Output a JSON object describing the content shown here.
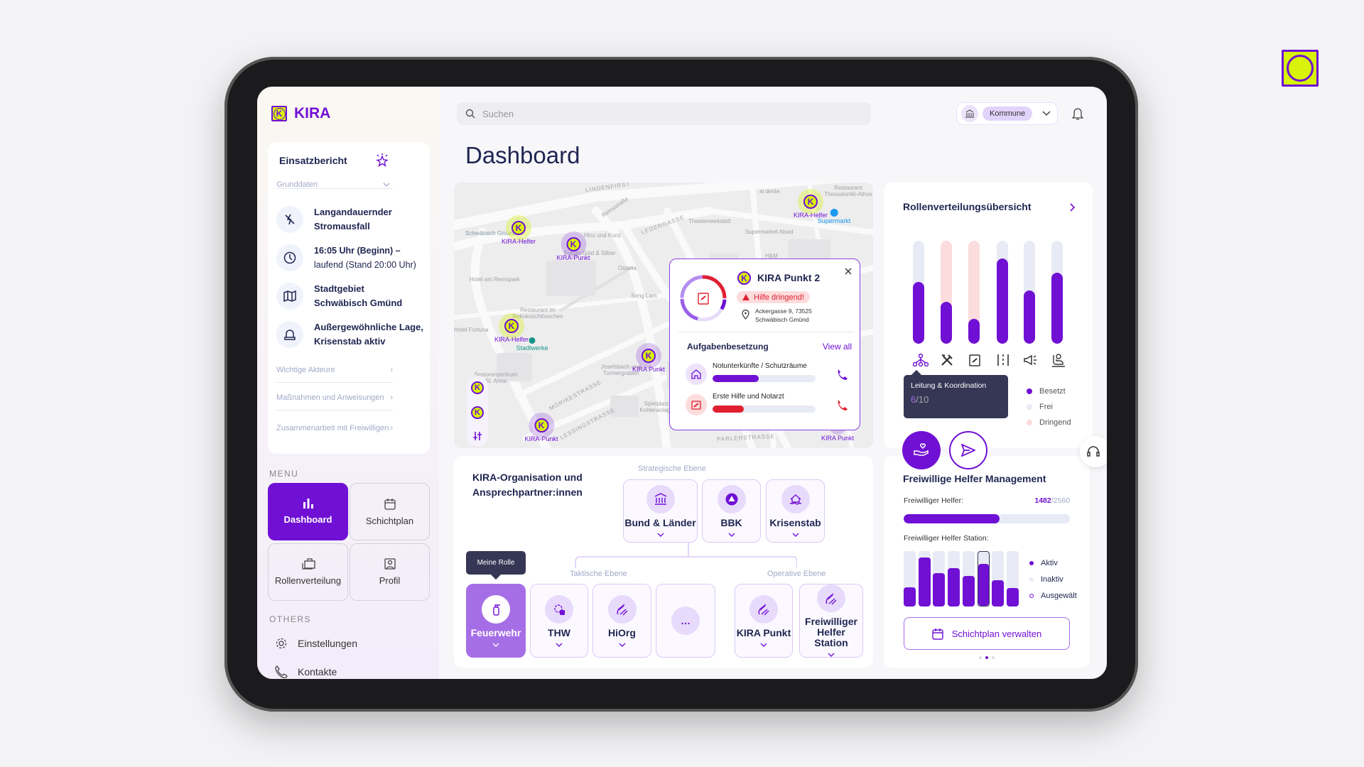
{
  "app": {
    "name": "KIRA",
    "logo_letter": "K"
  },
  "colors": {
    "accent": "#7010d4",
    "brand_yellow": "#d8f20b",
    "urgent": "#e02030",
    "free": "#e8ebf5",
    "urgent_light": "#fcdcdc",
    "navy": "#1f2551"
  },
  "header": {
    "search_placeholder": "Suchen",
    "role_select": "Kommune",
    "icons": [
      "search-icon",
      "institution-icon",
      "chevron-down-icon",
      "bell-icon"
    ]
  },
  "page_title": "Dashboard",
  "einsatzbericht": {
    "title": "Einsatzbericht",
    "section": "Grunddaten",
    "items": [
      {
        "icon": "power-off-icon",
        "line1": "Langandauernder",
        "line2": "Stromausfall"
      },
      {
        "icon": "clock-icon",
        "line1": "16:05 Uhr (Beginn) –",
        "line2": "laufend (Stand 20:00 Uhr)"
      },
      {
        "icon": "map-icon",
        "line1": "Stadtgebiet",
        "line2": "Schwäbisch Gmünd"
      },
      {
        "icon": "siren-icon",
        "line1": "Außergewöhnliche Lage,",
        "line2": "Krisenstab aktiv"
      }
    ],
    "links": [
      "Wichtige Akteure",
      "Maßnahmen und Anweisungen",
      "Zusammenarbeit mit Freiwilligen"
    ]
  },
  "menu": {
    "label": "MENU",
    "items": [
      {
        "label": "Dashboard",
        "icon": "bar-chart-icon",
        "active": true
      },
      {
        "label": "Schichtplan",
        "icon": "calendar-icon"
      },
      {
        "label": "Rollenverteilung",
        "icon": "briefcase-icon"
      },
      {
        "label": "Profil",
        "icon": "profile-icon"
      }
    ],
    "others_label": "OTHERS",
    "others": [
      {
        "label": "Einstellungen",
        "icon": "gear-icon"
      },
      {
        "label": "Kontakte",
        "icon": "phone-icon"
      }
    ]
  },
  "map": {
    "streets": [
      "LINDENFIRST",
      "LEDERGASSE",
      "MÖRIKESTRASSE",
      "LESSINGSTRASSE",
      "PARLERSTRASSE",
      "Remsstraße"
    ],
    "pois": [
      "Schwäbisch Gmünd",
      "Hinz und Kunz",
      "Forum Gold & Silber",
      "Osteria",
      "Hotel am Remspark",
      "Song Lam",
      "Restaurant im Rokokoschlösschen",
      "Hotel Fortuna",
      "Seniorenzentrum St. Anna",
      "Josefsbach und Turmergraben",
      "Spielplatz Kohleranlage",
      "Theaterwerkstatt",
      "Supermarket Alsed",
      "H&M",
      "Restaurant Thessaloniki-Athos",
      "al dente"
    ],
    "markers": [
      {
        "label": "KIRA-Helfer",
        "type": "helfer"
      },
      {
        "label": "KIRA-Punkt",
        "type": "punkt"
      },
      {
        "label": "KIRA-Helfer",
        "type": "helfer"
      },
      {
        "label": "KIRA Punkt",
        "type": "punkt"
      },
      {
        "label": "KIRA-Punkt",
        "type": "punkt"
      },
      {
        "label": "KIRA-Helfer",
        "type": "helfer"
      },
      {
        "label": "KIRA Punkt",
        "type": "punkt"
      }
    ],
    "special": [
      {
        "label": "Supermarkt"
      },
      {
        "label": "Stadtwerke"
      }
    ],
    "popup": {
      "title": "KIRA Punkt 2",
      "badge": "Hilfe dringend!",
      "address1": "Ackergasse 9, 73525",
      "address2": "Schwäbisch Gmünd",
      "section": "Aufgabenbesetzung",
      "view_all": "View all",
      "tasks": [
        {
          "label": "Notunterkünfte / Schutzräume",
          "progress": 0.45,
          "color": "#7010d4",
          "icon": "house-icon"
        },
        {
          "label": "Erste Hilfe und Notarzt",
          "progress": 0.3,
          "color": "#e02030",
          "icon": "first-aid-icon"
        }
      ]
    }
  },
  "org": {
    "title1": "KIRA-Organisation und",
    "title2": "Ansprechpartner:innen",
    "levels": {
      "strategic": "Strategische Ebene",
      "tactical": "Taktische Ebene",
      "operative": "Operative Ebene"
    },
    "tooltip": "Meine Rolle",
    "strategic": [
      {
        "label": "Bund & Länder"
      },
      {
        "label": "BBK"
      },
      {
        "label": "Krisenstab"
      }
    ],
    "tactical": [
      {
        "label": "Feuerwehr",
        "active": true
      },
      {
        "label": "THW"
      },
      {
        "label": "HiOrg"
      },
      {
        "label": "…"
      }
    ],
    "operative": [
      {
        "label": "KIRA Punkt"
      },
      {
        "label": "Freiwilliger Helfer Station"
      }
    ]
  },
  "roles": {
    "title": "Rollenverteilungsübersicht",
    "bars": [
      {
        "role": "Leitung & Koordination",
        "icon": "hierarchy-icon",
        "filled": 0.6,
        "status": "free"
      },
      {
        "icon": "tools-icon",
        "filled": 0.41,
        "status": "urgent"
      },
      {
        "icon": "first-aid-icon",
        "filled": 0.24,
        "status": "urgent"
      },
      {
        "icon": "logistics-icon",
        "filled": 0.83,
        "status": "free"
      },
      {
        "icon": "megaphone-icon",
        "filled": 0.52,
        "status": "free"
      },
      {
        "icon": "care-seat-icon",
        "filled": 0.69,
        "status": "free"
      }
    ],
    "tooltip": {
      "title": "Leitung & Koordination",
      "value": "6",
      "total": "/10"
    },
    "legend": [
      "Besetzt",
      "Frei",
      "Dringend"
    ]
  },
  "helpers": {
    "title": "Freiwillige Helfer Management",
    "count_label": "Freiwilliger Helfer:",
    "count": "1482",
    "total": "/2560",
    "progress": 0.579,
    "station_label": "Freiwilliger Helfer Station:",
    "stations": [
      0.35,
      0.88,
      0.6,
      0.69,
      0.55,
      0.78,
      0.48,
      0.33
    ],
    "selected_station": 5,
    "legend": [
      "Aktiv",
      "Inaktiv",
      "Ausgewält"
    ],
    "button": "Schichtplan verwalten",
    "pager": {
      "pages": 3,
      "current": 2
    }
  }
}
